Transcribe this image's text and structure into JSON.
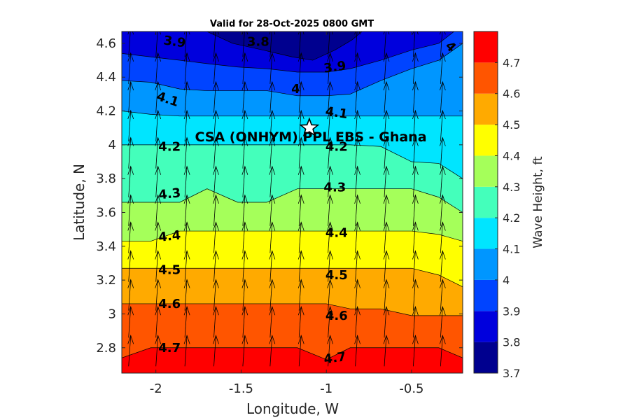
{
  "chart_data": {
    "type": "heatmap",
    "subtype": "filled-contour with wind-direction arrows",
    "title": "Valid for 28-Oct-2025 0800 GMT",
    "xlabel": "Longitude, W",
    "ylabel": "Latitude, N",
    "xlim": [
      -2.2,
      -0.2
    ],
    "ylim": [
      2.65,
      4.67
    ],
    "x_ticks": [
      -2,
      -1.5,
      -1,
      -0.5
    ],
    "x_tick_labels": [
      "-2",
      "-1.5",
      "-1",
      "-0.5"
    ],
    "y_ticks": [
      2.8,
      3.0,
      3.2,
      3.4,
      3.6,
      3.8,
      4.0,
      4.2,
      4.4,
      4.6
    ],
    "y_tick_labels": [
      "2.8",
      "3",
      "3.2",
      "3.4",
      "3.6",
      "3.8",
      "4",
      "4.2",
      "4.4",
      "4.6"
    ],
    "colorbar": {
      "label": "Wave Height, ft",
      "range": [
        3.7,
        4.8
      ],
      "levels": [
        3.7,
        3.8,
        3.9,
        4.0,
        4.1,
        4.2,
        4.3,
        4.4,
        4.5,
        4.6,
        4.7,
        4.8
      ],
      "tick_values": [
        3.7,
        3.8,
        3.9,
        4.0,
        4.1,
        4.2,
        4.3,
        4.4,
        4.5,
        4.6,
        4.7
      ],
      "tick_labels": [
        "3.7",
        "3.8",
        "3.9",
        "4",
        "4.1",
        "4.2",
        "4.3",
        "4.4",
        "4.5",
        "4.6",
        "4.7"
      ],
      "colors": [
        "#00008f",
        "#0000dd",
        "#0044ff",
        "#0096ff",
        "#00e5ff",
        "#44ffbb",
        "#a5ff5a",
        "#ffff00",
        "#ffaa00",
        "#ff5500",
        "#ff0000"
      ]
    },
    "contours": [
      {
        "level": 3.8,
        "x": [
          -1.7,
          -1.55,
          -1.37,
          -1.2,
          -1.08,
          -0.95,
          -0.85,
          -0.79
        ],
        "y": [
          4.67,
          4.6,
          4.56,
          4.52,
          4.5,
          4.56,
          4.62,
          4.67
        ]
      },
      {
        "level": 3.9,
        "x": [
          -2.2,
          -2.03,
          -1.86,
          -1.7,
          -1.52,
          -1.35,
          -1.17,
          -1.0,
          -0.86,
          -0.68,
          -0.5,
          -0.34,
          -0.25
        ],
        "y": [
          4.54,
          4.52,
          4.5,
          4.48,
          4.46,
          4.45,
          4.43,
          4.43,
          4.45,
          4.5,
          4.56,
          4.6,
          4.67
        ]
      },
      {
        "level": 4.0,
        "x": [
          -2.2,
          -2.03,
          -1.86,
          -1.7,
          -1.52,
          -1.35,
          -1.17,
          -1.0,
          -0.86,
          -0.68,
          -0.5,
          -0.34,
          -0.2
        ],
        "y": [
          4.38,
          4.37,
          4.33,
          4.32,
          4.32,
          4.32,
          4.29,
          4.29,
          4.3,
          4.38,
          4.45,
          4.5,
          4.6
        ]
      },
      {
        "level": 4.1,
        "x": [
          -2.2,
          -2.03,
          -1.86,
          -1.7,
          -1.52,
          -1.35,
          -1.17,
          -1.0,
          -0.86,
          -0.68,
          -0.5,
          -0.34,
          -0.2
        ],
        "y": [
          4.2,
          4.18,
          4.17,
          4.17,
          4.17,
          4.17,
          4.17,
          4.17,
          4.17,
          4.17,
          4.17,
          4.17,
          4.17
        ]
      },
      {
        "level": 4.2,
        "x": [
          -2.2,
          -2.03,
          -1.86,
          -1.7,
          -1.52,
          -1.35,
          -1.17,
          -1.0,
          -0.86,
          -0.68,
          -0.5,
          -0.34,
          -0.2
        ],
        "y": [
          4.0,
          4.0,
          4.0,
          4.0,
          4.0,
          4.0,
          4.0,
          4.0,
          4.0,
          3.99,
          3.9,
          3.89,
          3.8
        ]
      },
      {
        "level": 4.3,
        "x": [
          -2.2,
          -2.03,
          -1.86,
          -1.7,
          -1.52,
          -1.35,
          -1.17,
          -1.0,
          -0.86,
          -0.68,
          -0.5,
          -0.34,
          -0.2
        ],
        "y": [
          3.66,
          3.66,
          3.66,
          3.74,
          3.66,
          3.66,
          3.74,
          3.74,
          3.74,
          3.74,
          3.74,
          3.69,
          3.6
        ]
      },
      {
        "level": 4.4,
        "x": [
          -2.2,
          -2.03,
          -1.86,
          -1.7,
          -1.52,
          -1.35,
          -1.17,
          -1.0,
          -0.86,
          -0.68,
          -0.5,
          -0.34,
          -0.2
        ],
        "y": [
          3.43,
          3.43,
          3.49,
          3.49,
          3.49,
          3.49,
          3.49,
          3.49,
          3.49,
          3.49,
          3.49,
          3.47,
          3.43
        ]
      },
      {
        "level": 4.5,
        "x": [
          -2.2,
          -2.03,
          -1.86,
          -1.7,
          -1.52,
          -1.35,
          -1.17,
          -1.0,
          -0.86,
          -0.68,
          -0.5,
          -0.34,
          -0.2
        ],
        "y": [
          3.27,
          3.27,
          3.27,
          3.27,
          3.27,
          3.27,
          3.27,
          3.27,
          3.27,
          3.27,
          3.27,
          3.23,
          3.16
        ]
      },
      {
        "level": 4.6,
        "x": [
          -2.2,
          -2.03,
          -1.86,
          -1.7,
          -1.52,
          -1.35,
          -1.17,
          -1.0,
          -0.86,
          -0.68,
          -0.5,
          -0.34,
          -0.2
        ],
        "y": [
          3.06,
          3.06,
          3.06,
          3.06,
          3.06,
          3.06,
          3.06,
          3.06,
          3.03,
          3.03,
          2.99,
          2.99,
          2.99
        ]
      },
      {
        "level": 4.7,
        "x": [
          -2.2,
          -2.03,
          -1.86,
          -1.7,
          -1.52,
          -1.35,
          -1.17,
          -1.0,
          -0.86,
          -0.68,
          -0.5,
          -0.34,
          -0.2
        ],
        "y": [
          2.74,
          2.8,
          2.8,
          2.8,
          2.8,
          2.8,
          2.8,
          2.73,
          2.8,
          2.8,
          2.8,
          2.8,
          2.74
        ]
      }
    ],
    "contour_labels": [
      {
        "text": "3.9",
        "x": -1.89,
        "y": 4.61,
        "rot": 8
      },
      {
        "text": "3.8",
        "x": -1.4,
        "y": 4.61,
        "rot": 0
      },
      {
        "text": "3.9",
        "x": -0.95,
        "y": 4.46,
        "rot": -8
      },
      {
        "text": "4",
        "x": -0.27,
        "y": 4.58,
        "rot": 45
      },
      {
        "text": "4",
        "x": -1.18,
        "y": 4.33,
        "rot": 0
      },
      {
        "text": "4.1",
        "x": -1.93,
        "y": 4.27,
        "rot": 18
      },
      {
        "text": "4.1",
        "x": -0.94,
        "y": 4.19,
        "rot": 8
      },
      {
        "text": "4.2",
        "x": -1.92,
        "y": 3.99,
        "rot": 0
      },
      {
        "text": "4.2",
        "x": -0.94,
        "y": 3.99,
        "rot": 0
      },
      {
        "text": "4.3",
        "x": -1.92,
        "y": 3.71,
        "rot": -6
      },
      {
        "text": "4.3",
        "x": -0.95,
        "y": 3.75,
        "rot": 0
      },
      {
        "text": "4.4",
        "x": -1.92,
        "y": 3.46,
        "rot": -6
      },
      {
        "text": "4.4",
        "x": -0.94,
        "y": 3.48,
        "rot": 0
      },
      {
        "text": "4.5",
        "x": -1.92,
        "y": 3.26,
        "rot": 0
      },
      {
        "text": "4.5",
        "x": -0.94,
        "y": 3.23,
        "rot": 0
      },
      {
        "text": "4.6",
        "x": -1.92,
        "y": 3.06,
        "rot": 0
      },
      {
        "text": "4.6",
        "x": -0.94,
        "y": 2.99,
        "rot": 0
      },
      {
        "text": "4.7",
        "x": -1.92,
        "y": 2.8,
        "rot": 0
      },
      {
        "text": "4.7",
        "x": -0.95,
        "y": 2.74,
        "rot": -8
      }
    ],
    "wind_arrows": {
      "direction": "northward, slight eastward tilt",
      "x": [
        -2.16,
        -2.0,
        -1.83,
        -1.66,
        -1.49,
        -1.33,
        -1.16,
        -0.99,
        -0.83,
        -0.66,
        -0.49,
        -0.33
      ],
      "y": [
        2.69,
        2.86,
        3.02,
        3.19,
        3.36,
        3.52,
        3.69,
        3.86,
        4.02,
        4.19,
        4.36,
        4.52
      ]
    },
    "annotations": [
      {
        "text": "CSA (ONHYM) PPL EBS  - Ghana",
        "x": -1.1,
        "y": 4.1,
        "marker": "star"
      }
    ]
  }
}
